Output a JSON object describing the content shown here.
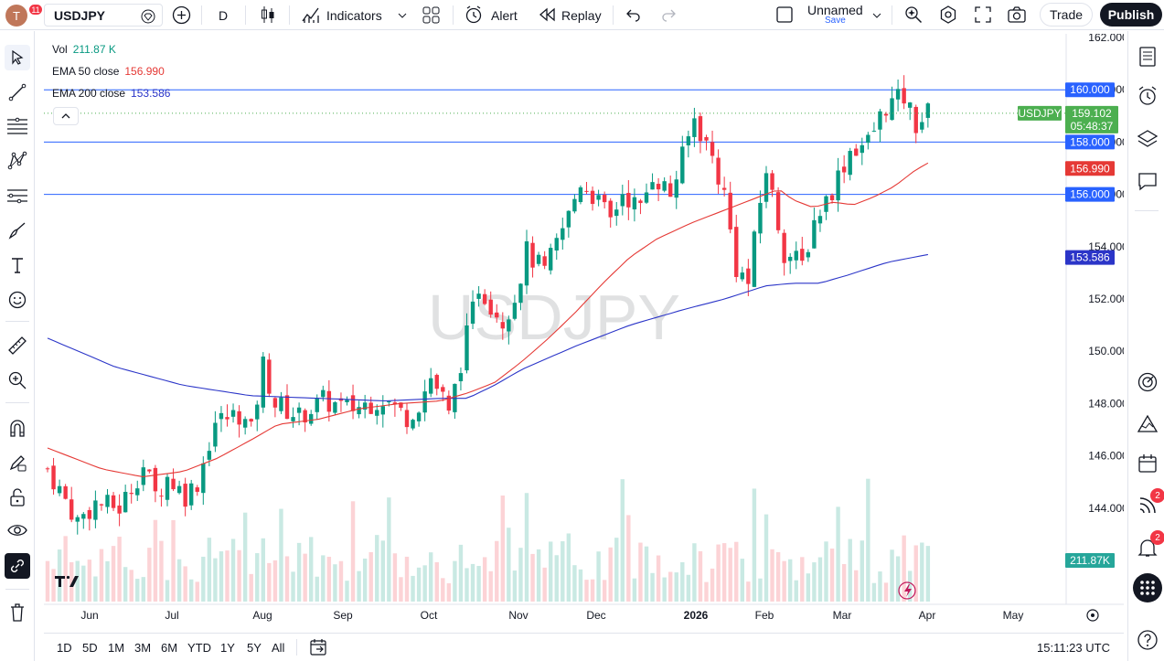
{
  "toolbar": {
    "notif_count": "11",
    "avatar_letter": "T",
    "symbol": "USDJPY",
    "interval": "D",
    "indicators": "Indicators",
    "alert": "Alert",
    "replay": "Replay",
    "layout_name": "Unnamed",
    "save": "Save",
    "trade": "Trade",
    "publish": "Publish"
  },
  "legend": {
    "vol_label": "Vol",
    "vol_value": "211.87 K",
    "ema50_label": "EMA 50 close",
    "ema50_value": "156.990",
    "ema200_label": "EMA 200 close",
    "ema200_value": "153.586"
  },
  "watermark": "USDJPY",
  "price_axis": [
    "162.000",
    "160.000",
    "158.000",
    "156.000",
    "154.000",
    "152.000",
    "150.000",
    "148.000",
    "146.000",
    "144.000"
  ],
  "badges": {
    "line160": "160.000",
    "line158": "158.000",
    "line156": "156.000",
    "symbol": "USDJPY",
    "last": "159.102",
    "countdown": "05:48:37",
    "ema50": "156.990",
    "ema200": "153.586",
    "vol": "211.87K"
  },
  "time_axis": [
    "Jun",
    "Jul",
    "Aug",
    "Sep",
    "Oct",
    "Nov",
    "Dec",
    "2026",
    "Feb",
    "Mar",
    "Apr",
    "May"
  ],
  "ranges": [
    "1D",
    "5D",
    "1M",
    "3M",
    "6M",
    "YTD",
    "1Y",
    "5Y",
    "All"
  ],
  "clock": "15:11:23 UTC",
  "right_badges": {
    "feed": "2",
    "alerts": "2"
  },
  "colors": {
    "up": "#089981",
    "down": "#f23645",
    "ema50": "#e53935",
    "ema200": "#2b35c8",
    "hline": "#2962ff",
    "last": "#4caf50"
  },
  "chart_data": {
    "type": "candlestick",
    "symbol": "USDJPY",
    "interval": "1D",
    "ylim": [
      142,
      162
    ],
    "horizontal_lines": [
      160.0,
      158.0,
      156.0
    ],
    "last_price": 159.102,
    "ema50_last": 156.99,
    "ema200_last": 153.586,
    "ema50_path": [
      [
        0,
        146.3
      ],
      [
        8,
        145.5
      ],
      [
        14,
        145.2
      ],
      [
        20,
        145.4
      ],
      [
        25,
        145.9
      ],
      [
        30,
        146.6
      ],
      [
        34,
        147.2
      ],
      [
        40,
        147.4
      ],
      [
        46,
        147.8
      ],
      [
        52,
        148.0
      ],
      [
        58,
        148.1
      ],
      [
        62,
        148.4
      ],
      [
        66,
        148.8
      ],
      [
        70,
        149.6
      ],
      [
        74,
        150.5
      ],
      [
        78,
        151.5
      ],
      [
        82,
        152.6
      ],
      [
        86,
        153.6
      ],
      [
        90,
        154.3
      ],
      [
        95,
        154.9
      ],
      [
        100,
        155.4
      ],
      [
        105,
        155.9
      ],
      [
        108,
        156.2
      ],
      [
        110,
        155.8
      ],
      [
        113,
        155.5
      ],
      [
        116,
        155.7
      ],
      [
        119,
        155.6
      ],
      [
        122,
        155.9
      ],
      [
        125,
        156.3
      ],
      [
        128,
        156.9
      ],
      [
        130,
        157.2
      ]
    ],
    "ema200_path": [
      [
        0,
        150.5
      ],
      [
        10,
        149.4
      ],
      [
        20,
        148.7
      ],
      [
        30,
        148.3
      ],
      [
        40,
        148.2
      ],
      [
        50,
        148.1
      ],
      [
        58,
        148.2
      ],
      [
        62,
        148.2
      ],
      [
        66,
        148.7
      ],
      [
        70,
        149.3
      ],
      [
        78,
        150.2
      ],
      [
        86,
        151.0
      ],
      [
        94,
        151.6
      ],
      [
        100,
        152.0
      ],
      [
        106,
        152.5
      ],
      [
        110,
        152.6
      ],
      [
        114,
        152.6
      ],
      [
        118,
        152.9
      ],
      [
        124,
        153.4
      ],
      [
        130,
        153.7
      ]
    ],
    "close_path": [
      [
        0,
        145.5
      ],
      [
        5,
        143.5
      ],
      [
        8,
        144.2
      ],
      [
        12,
        144.0
      ],
      [
        16,
        145.6
      ],
      [
        18,
        144.5
      ],
      [
        20,
        145.2
      ],
      [
        23,
        144.5
      ],
      [
        25,
        145.0
      ],
      [
        28,
        147.3
      ],
      [
        32,
        147.6
      ],
      [
        34,
        146.9
      ],
      [
        36,
        149.5
      ],
      [
        38,
        148.0
      ],
      [
        42,
        147.5
      ],
      [
        46,
        148.1
      ],
      [
        50,
        147.8
      ],
      [
        52,
        147.9
      ],
      [
        56,
        148.2
      ],
      [
        60,
        147.5
      ],
      [
        62,
        148.0
      ],
      [
        64,
        149.0
      ],
      [
        66,
        148.2
      ],
      [
        67,
        147.5
      ],
      [
        69,
        149.6
      ],
      [
        72,
        152.5
      ],
      [
        76,
        151.2
      ],
      [
        78,
        152.1
      ],
      [
        80,
        153.8
      ],
      [
        83,
        153.0
      ],
      [
        87,
        155.2
      ],
      [
        89,
        156.5
      ],
      [
        91,
        156.0
      ],
      [
        94,
        155.0
      ],
      [
        96,
        156.1
      ],
      [
        99,
        155.4
      ],
      [
        101,
        156.8
      ],
      [
        104,
        156.0
      ],
      [
        106,
        157.4
      ],
      [
        108,
        158.9
      ],
      [
        111,
        157.4
      ],
      [
        113,
        156.0
      ],
      [
        115,
        153.2
      ],
      [
        117,
        152.6
      ],
      [
        119,
        155.7
      ],
      [
        120,
        157.0
      ],
      [
        123,
        153.8
      ],
      [
        126,
        153.3
      ],
      [
        128,
        155.0
      ],
      [
        131,
        156.2
      ],
      [
        134,
        157.7
      ],
      [
        137,
        158.0
      ],
      [
        140,
        159.4
      ],
      [
        143,
        159.7
      ],
      [
        145,
        158.7
      ],
      [
        147,
        159.1
      ]
    ],
    "time_labels": [
      "Jun",
      "Jul",
      "Aug",
      "Sep",
      "Oct",
      "Nov",
      "Dec",
      "2026",
      "Feb",
      "Mar",
      "Apr",
      "May"
    ]
  }
}
